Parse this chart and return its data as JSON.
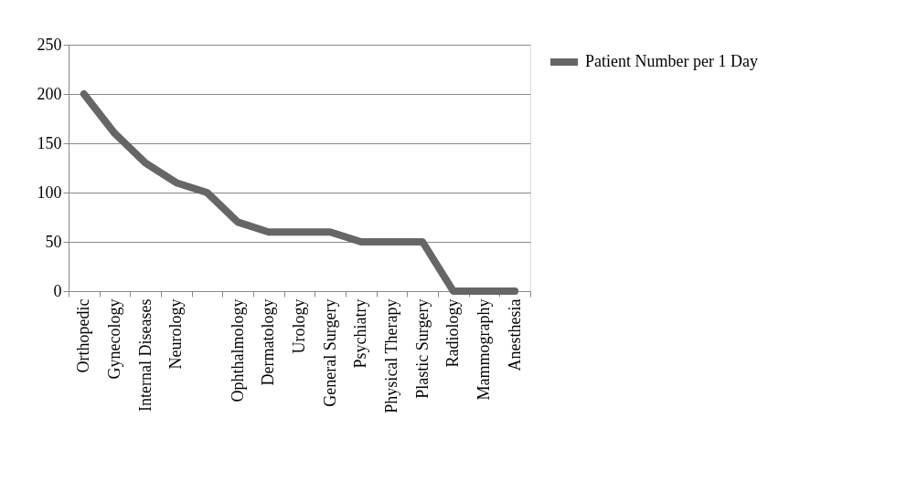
{
  "chart_data": {
    "type": "line",
    "categories": [
      "Orthopedic",
      "Gynecology",
      "Internal Diseases",
      "Neurology",
      null,
      "Ophthalmology",
      "Dermatology",
      "Urology",
      "General Surgery",
      "Psychiatry",
      "Physical Therapy",
      "Plastic Surgery",
      "Radiology",
      "Mammography",
      "Anesthesia"
    ],
    "series": [
      {
        "name": "Patient Number per 1 Day",
        "color": "#666666",
        "values": [
          200,
          160,
          130,
          110,
          100,
          70,
          60,
          60,
          60,
          50,
          50,
          50,
          0,
          0,
          0
        ]
      }
    ],
    "ylim": [
      0,
      250
    ],
    "yticks": [
      0,
      50,
      100,
      150,
      200,
      250
    ],
    "grid": "y",
    "legend": "right",
    "marker": "none",
    "line_style": "solid"
  }
}
